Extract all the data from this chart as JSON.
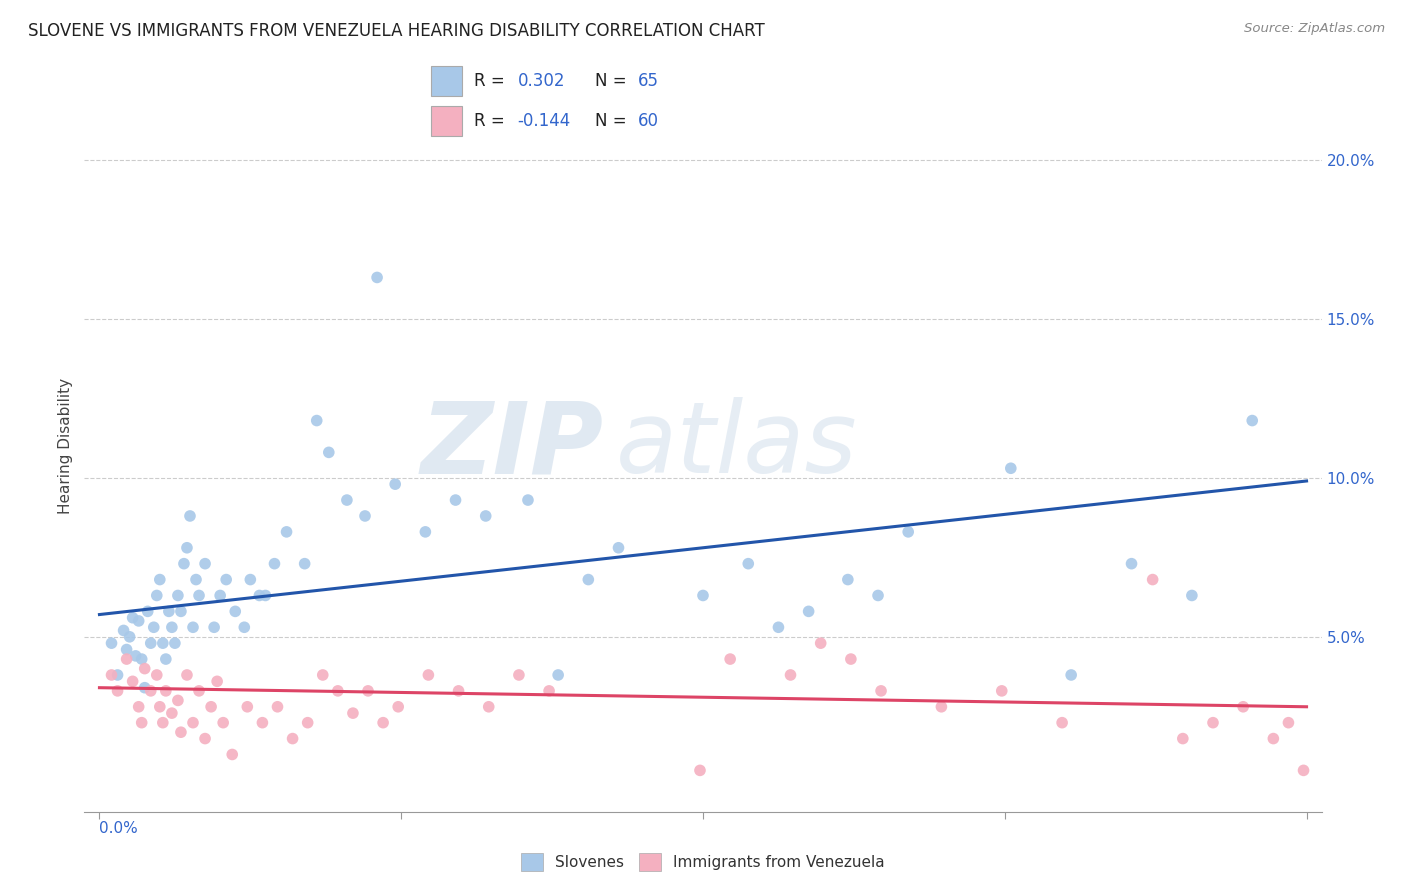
{
  "title": "SLOVENE VS IMMIGRANTS FROM VENEZUELA HEARING DISABILITY CORRELATION CHART",
  "source": "Source: ZipAtlas.com",
  "ylabel": "Hearing Disability",
  "ytick_labels": [
    "5.0%",
    "10.0%",
    "15.0%",
    "20.0%"
  ],
  "ytick_values": [
    0.05,
    0.1,
    0.15,
    0.2
  ],
  "xlim": [
    -0.005,
    0.405
  ],
  "ylim": [
    -0.005,
    0.225
  ],
  "color_blue": "#a8c8e8",
  "color_pink": "#f4b0c0",
  "line_color_blue": "#2255aa",
  "line_color_pink": "#dd4466",
  "watermark_zip": "ZIP",
  "watermark_atlas": "atlas",
  "blue_x": [
    0.004,
    0.006,
    0.008,
    0.009,
    0.01,
    0.011,
    0.012,
    0.013,
    0.014,
    0.015,
    0.016,
    0.017,
    0.018,
    0.019,
    0.02,
    0.021,
    0.022,
    0.023,
    0.024,
    0.025,
    0.026,
    0.027,
    0.028,
    0.029,
    0.03,
    0.031,
    0.032,
    0.033,
    0.035,
    0.038,
    0.04,
    0.042,
    0.045,
    0.048,
    0.05,
    0.053,
    0.055,
    0.058,
    0.062,
    0.068,
    0.072,
    0.076,
    0.082,
    0.088,
    0.092,
    0.098,
    0.108,
    0.118,
    0.128,
    0.142,
    0.152,
    0.162,
    0.172,
    0.2,
    0.215,
    0.225,
    0.235,
    0.248,
    0.258,
    0.268,
    0.302,
    0.322,
    0.342,
    0.362,
    0.382
  ],
  "blue_y": [
    0.048,
    0.038,
    0.052,
    0.046,
    0.05,
    0.056,
    0.044,
    0.055,
    0.043,
    0.034,
    0.058,
    0.048,
    0.053,
    0.063,
    0.068,
    0.048,
    0.043,
    0.058,
    0.053,
    0.048,
    0.063,
    0.058,
    0.073,
    0.078,
    0.088,
    0.053,
    0.068,
    0.063,
    0.073,
    0.053,
    0.063,
    0.068,
    0.058,
    0.053,
    0.068,
    0.063,
    0.063,
    0.073,
    0.083,
    0.073,
    0.118,
    0.108,
    0.093,
    0.088,
    0.163,
    0.098,
    0.083,
    0.093,
    0.088,
    0.093,
    0.038,
    0.068,
    0.078,
    0.063,
    0.073,
    0.053,
    0.058,
    0.068,
    0.063,
    0.083,
    0.103,
    0.038,
    0.073,
    0.063,
    0.118
  ],
  "pink_x": [
    0.004,
    0.006,
    0.009,
    0.011,
    0.013,
    0.014,
    0.015,
    0.017,
    0.019,
    0.02,
    0.021,
    0.022,
    0.024,
    0.026,
    0.027,
    0.029,
    0.031,
    0.033,
    0.035,
    0.037,
    0.039,
    0.041,
    0.044,
    0.049,
    0.054,
    0.059,
    0.064,
    0.069,
    0.074,
    0.079,
    0.084,
    0.089,
    0.094,
    0.099,
    0.109,
    0.119,
    0.129,
    0.139,
    0.149,
    0.199,
    0.209,
    0.229,
    0.239,
    0.249,
    0.259,
    0.279,
    0.299,
    0.319,
    0.349,
    0.359,
    0.369,
    0.379,
    0.389,
    0.394,
    0.399
  ],
  "pink_y": [
    0.038,
    0.033,
    0.043,
    0.036,
    0.028,
    0.023,
    0.04,
    0.033,
    0.038,
    0.028,
    0.023,
    0.033,
    0.026,
    0.03,
    0.02,
    0.038,
    0.023,
    0.033,
    0.018,
    0.028,
    0.036,
    0.023,
    0.013,
    0.028,
    0.023,
    0.028,
    0.018,
    0.023,
    0.038,
    0.033,
    0.026,
    0.033,
    0.023,
    0.028,
    0.038,
    0.033,
    0.028,
    0.038,
    0.033,
    0.008,
    0.043,
    0.038,
    0.048,
    0.043,
    0.033,
    0.028,
    0.033,
    0.023,
    0.068,
    0.018,
    0.023,
    0.028,
    0.018,
    0.023,
    0.008
  ],
  "blue_line_x0": 0.0,
  "blue_line_y0": 0.057,
  "blue_line_x1": 0.4,
  "blue_line_y1": 0.099,
  "pink_line_x0": 0.0,
  "pink_line_y0": 0.034,
  "pink_line_x1": 0.4,
  "pink_line_y1": 0.028
}
